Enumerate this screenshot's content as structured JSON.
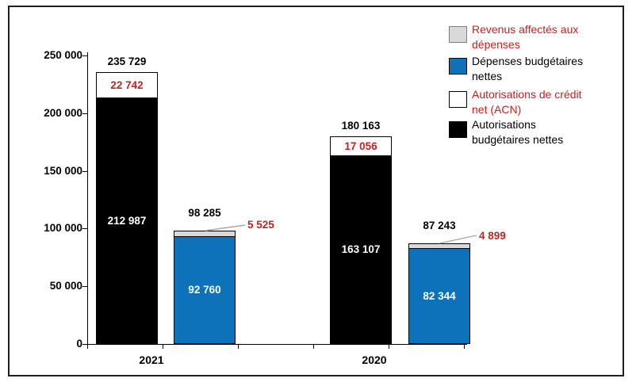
{
  "colors": {
    "red_label": "#C9211E",
    "blue": "#0E72BA",
    "gray": "#D9D9D9",
    "black": "#000000",
    "white": "#FFFFFF",
    "leader_line": "#A6A6A6"
  },
  "axis": {
    "y_ticks": [
      {
        "label": "250 000",
        "value": 250000
      },
      {
        "label": "200 000",
        "value": 200000
      },
      {
        "label": "150 000",
        "value": 150000
      },
      {
        "label": "100 000",
        "value": 100000
      },
      {
        "label": "50 000",
        "value": 50000
      },
      {
        "label": "0",
        "value": 0
      }
    ],
    "x_labels": [
      "2021",
      "2020"
    ]
  },
  "legend": {
    "items": [
      {
        "label": "Revenus affectés aux dépenses",
        "lines": [
          "Revenus affectés aux",
          "dépenses"
        ],
        "swatch_color": "#D9D9D9",
        "swatch_border": "#7F7F7F",
        "text_color": "#C9211E"
      },
      {
        "label": "Dépenses budgétaires nettes",
        "lines": [
          "Dépenses budgétaires",
          "nettes"
        ],
        "swatch_color": "#0E72BA",
        "swatch_border": "#000000",
        "text_color": "#000000"
      },
      {
        "label": "Autorisations de crédit net (ACN)",
        "lines": [
          "Autorisations de crédit",
          "net (ACN)"
        ],
        "swatch_color": "#FFFFFF",
        "swatch_border": "#000000",
        "text_color": "#C9211E"
      },
      {
        "label": "Autorisations budgétaires nettes",
        "lines": [
          "Autorisations",
          "budgétaires nettes"
        ],
        "swatch_color": "#000000",
        "swatch_border": "#000000",
        "text_color": "#000000"
      }
    ]
  },
  "chart_data": {
    "type": "bar",
    "stacked": true,
    "grid": false,
    "legend_position": "top-right",
    "title": "",
    "xlabel": "",
    "ylabel": "",
    "ylim": [
      0,
      250000
    ],
    "y_tick_interval": 50000,
    "categories": [
      "2021",
      "2020"
    ],
    "series": [
      {
        "name": "Autorisations budgétaires nettes",
        "color": "#000000",
        "values": [
          212987,
          163107
        ]
      },
      {
        "name": "Autorisations de crédit net (ACN)",
        "color": "#FFFFFF",
        "values": [
          22742,
          17056
        ]
      },
      {
        "name": "Dépenses budgétaires nettes",
        "color": "#0E72BA",
        "values": [
          92760,
          82344
        ]
      },
      {
        "name": "Revenus affectés aux dépenses",
        "color": "#D9D9D9",
        "values": [
          5525,
          4899
        ]
      }
    ],
    "bars": [
      {
        "category": "2021",
        "kind": "authorizations",
        "total": 235729,
        "total_label": "235 729",
        "base": {
          "name": "Autorisations budgétaires nettes",
          "value": 212987,
          "label": "212 987",
          "color": "#000000",
          "label_color": "#FFFFFF"
        },
        "top": {
          "name": "Autorisations de crédit net (ACN)",
          "value": 22742,
          "label": "22 742",
          "color": "#FFFFFF",
          "label_color": "#C9211E",
          "label_position": "inside"
        }
      },
      {
        "category": "2021",
        "kind": "expenditures",
        "total": 98285,
        "total_label": "98 285",
        "base": {
          "name": "Dépenses budgétaires nettes",
          "value": 92760,
          "label": "92 760",
          "color": "#0E72BA",
          "label_color": "#FFFFFF"
        },
        "top": {
          "name": "Revenus affectés aux dépenses",
          "value": 5525,
          "label": "5 525",
          "color": "#D9D9D9",
          "label_color": "#C9211E",
          "label_position": "callout"
        }
      },
      {
        "category": "2020",
        "kind": "authorizations",
        "total": 180163,
        "total_label": "180 163",
        "base": {
          "name": "Autorisations budgétaires nettes",
          "value": 163107,
          "label": "163 107",
          "color": "#000000",
          "label_color": "#FFFFFF"
        },
        "top": {
          "name": "Autorisations de crédit net (ACN)",
          "value": 17056,
          "label": "17 056",
          "color": "#FFFFFF",
          "label_color": "#C9211E",
          "label_position": "inside"
        }
      },
      {
        "category": "2020",
        "kind": "expenditures",
        "total": 87243,
        "total_label": "87 243",
        "base": {
          "name": "Dépenses budgétaires nettes",
          "value": 82344,
          "label": "82 344",
          "color": "#0E72BA",
          "label_color": "#FFFFFF"
        },
        "top": {
          "name": "Revenus affectés aux dépenses",
          "value": 4899,
          "label": "4 899",
          "color": "#D9D9D9",
          "label_color": "#C9211E",
          "label_position": "callout"
        }
      }
    ]
  }
}
